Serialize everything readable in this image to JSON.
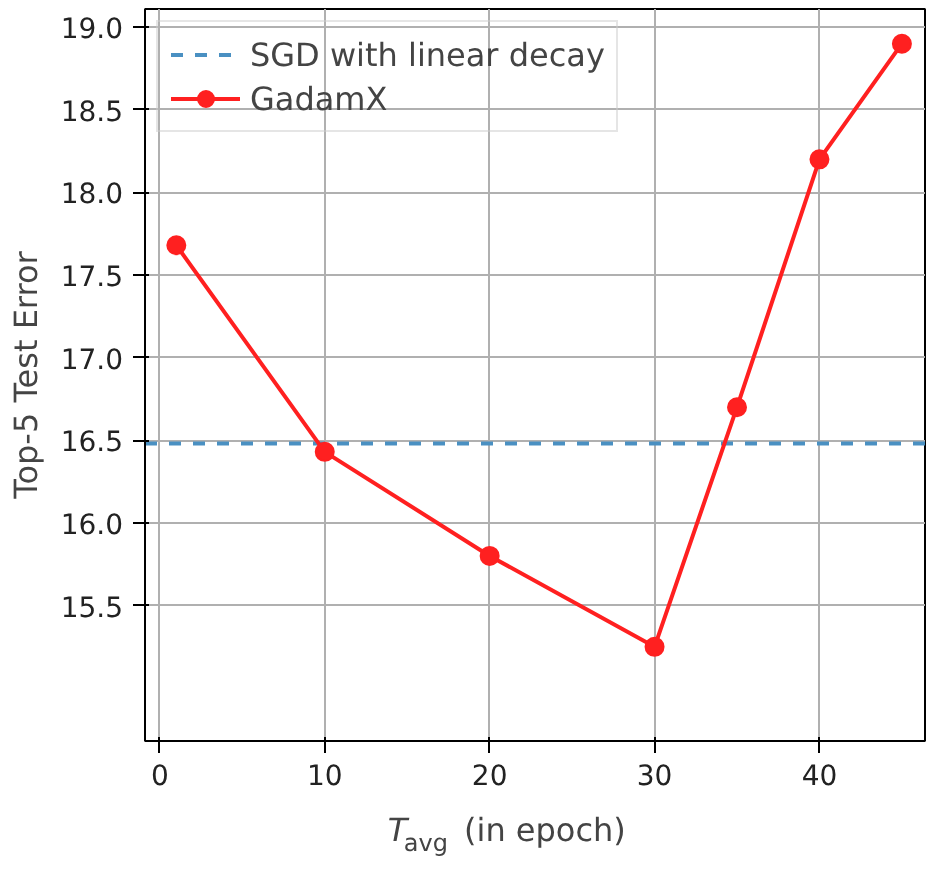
{
  "chart_data": {
    "type": "line",
    "xlabel": "T$_{avg}$ (in epoch)",
    "ylabel": "Top-5 Test Error",
    "series": [
      {
        "name": "GadamX",
        "color": "#ff2020",
        "x": [
          1,
          10,
          20,
          30,
          35,
          40,
          45
        ],
        "values": [
          17.68,
          16.43,
          15.8,
          15.25,
          16.7,
          18.2,
          18.9
        ]
      }
    ],
    "ref_lines": [
      {
        "axis": "y",
        "value": 16.48,
        "label": "SGD with linear decay",
        "color": "#4a90c2",
        "line_style": "dashed"
      }
    ],
    "xlim": [
      -0.9,
      46.4
    ],
    "ylim": [
      14.68,
      19.11
    ],
    "xticks": [
      0,
      10,
      20,
      30,
      40
    ],
    "yticks": [
      15.5,
      {
        "value": 16,
        "label": "16.0"
      },
      16.5,
      {
        "value": 17,
        "label": "17.0"
      },
      17.5,
      {
        "value": 18,
        "label": "18.0"
      },
      18.5,
      {
        "value": 19,
        "label": "19.0"
      }
    ],
    "grid": true,
    "legend": "top left",
    "marker": "circle",
    "line_style": "solid"
  }
}
